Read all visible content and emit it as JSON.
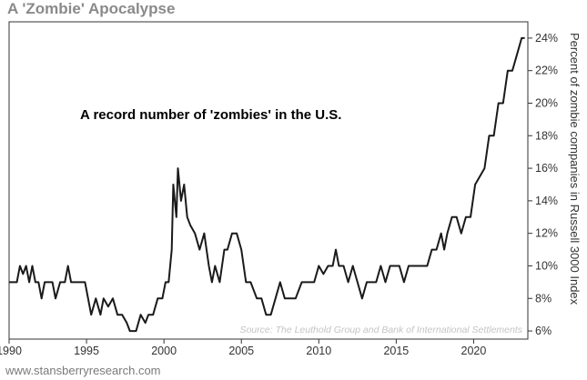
{
  "title": "A 'Zombie' Apocalypse",
  "footer": "www.stansberryresearch.com",
  "chart_data": {
    "type": "line",
    "title": "A 'Zombie' Apocalypse",
    "ylabel": "Percent of zombie companies in Russell 3000 Index",
    "annotation": "A record number of 'zombies' in the U.S.",
    "source": "Source: The Leuthold Group and Bank of International Settlements",
    "xlim": [
      1990,
      2023.5
    ],
    "ylim": [
      5.5,
      25
    ],
    "x_ticks": [
      1990,
      1995,
      2000,
      2005,
      2010,
      2015,
      2020
    ],
    "x_tick_labels": [
      "1990",
      "1995",
      "2000",
      "2005",
      "2010",
      "2015",
      "2020"
    ],
    "y_ticks": [
      6,
      8,
      10,
      12,
      14,
      16,
      18,
      20,
      22,
      24
    ],
    "y_tick_labels": [
      "6%",
      "8%",
      "10%",
      "12%",
      "14%",
      "16%",
      "18%",
      "20%",
      "22%",
      "24%"
    ],
    "grid": false,
    "line_color": "#1a1a1a",
    "series": [
      {
        "x": [
          1990.0,
          1990.5,
          1990.7,
          1990.9,
          1991.1,
          1991.3,
          1991.5,
          1991.7,
          1991.9,
          1992.1,
          1992.3,
          1992.6,
          1992.8,
          1993.0,
          1993.3,
          1993.6,
          1993.8,
          1994.0,
          1994.3,
          1994.6,
          1994.9,
          1995.1,
          1995.3,
          1995.6,
          1995.9,
          1996.1,
          1996.4,
          1996.7,
          1997.0,
          1997.3,
          1997.6,
          1997.8,
          1998.0,
          1998.2,
          1998.5,
          1998.8,
          1999.0,
          1999.3,
          1999.6,
          1999.9,
          2000.1,
          2000.3,
          2000.5,
          2000.6,
          2000.8,
          2000.9,
          2001.1,
          2001.3,
          2001.5,
          2001.7,
          2002.0,
          2002.3,
          2002.6,
          2002.9,
          2003.1,
          2003.3,
          2003.6,
          2003.9,
          2004.1,
          2004.4,
          2004.7,
          2005.0,
          2005.3,
          2005.6,
          2006.0,
          2006.3,
          2006.6,
          2006.9,
          2007.2,
          2007.5,
          2007.8,
          2008.1,
          2008.5,
          2008.9,
          2009.3,
          2009.7,
          2010.0,
          2010.3,
          2010.6,
          2010.9,
          2011.1,
          2011.3,
          2011.6,
          2011.9,
          2012.2,
          2012.5,
          2012.8,
          2013.1,
          2013.4,
          2013.7,
          2014.0,
          2014.3,
          2014.6,
          2014.9,
          2015.2,
          2015.5,
          2015.8,
          2016.1,
          2016.4,
          2016.7,
          2017.0,
          2017.3,
          2017.6,
          2017.9,
          2018.1,
          2018.3,
          2018.6,
          2018.9,
          2019.2,
          2019.5,
          2019.8,
          2020.1,
          2020.4,
          2020.7,
          2021.0,
          2021.3,
          2021.6,
          2021.9,
          2022.2,
          2022.5,
          2022.8,
          2023.1,
          2023.3
        ],
        "y": [
          9.0,
          9.0,
          10.0,
          9.5,
          10.0,
          9.0,
          10.0,
          9.0,
          9.0,
          8.0,
          9.0,
          9.0,
          9.0,
          8.0,
          9.0,
          9.0,
          10.0,
          9.0,
          9.0,
          9.0,
          9.0,
          8.0,
          7.0,
          8.0,
          7.0,
          8.0,
          7.5,
          8.0,
          7.0,
          7.0,
          6.5,
          6.0,
          6.0,
          6.0,
          7.0,
          6.5,
          7.0,
          7.0,
          8.0,
          8.0,
          9.0,
          9.0,
          11.0,
          15.0,
          13.0,
          16.0,
          14.0,
          15.0,
          13.0,
          12.5,
          12.0,
          11.0,
          12.0,
          10.0,
          9.0,
          10.0,
          9.0,
          11.0,
          11.0,
          12.0,
          12.0,
          11.0,
          9.0,
          9.0,
          8.0,
          8.0,
          7.0,
          7.0,
          8.0,
          9.0,
          8.0,
          8.0,
          8.0,
          9.0,
          9.0,
          9.0,
          10.0,
          9.5,
          10.0,
          10.0,
          11.0,
          10.0,
          10.0,
          9.0,
          10.0,
          9.0,
          8.0,
          9.0,
          9.0,
          9.0,
          10.0,
          9.0,
          10.0,
          10.0,
          10.0,
          9.0,
          10.0,
          10.0,
          10.0,
          10.0,
          10.0,
          11.0,
          11.0,
          12.0,
          11.0,
          12.0,
          13.0,
          13.0,
          12.0,
          13.0,
          13.0,
          15.0,
          15.5,
          16.0,
          18.0,
          18.0,
          20.0,
          20.0,
          22.0,
          22.0,
          23.0,
          24.0,
          24.0
        ]
      }
    ]
  }
}
